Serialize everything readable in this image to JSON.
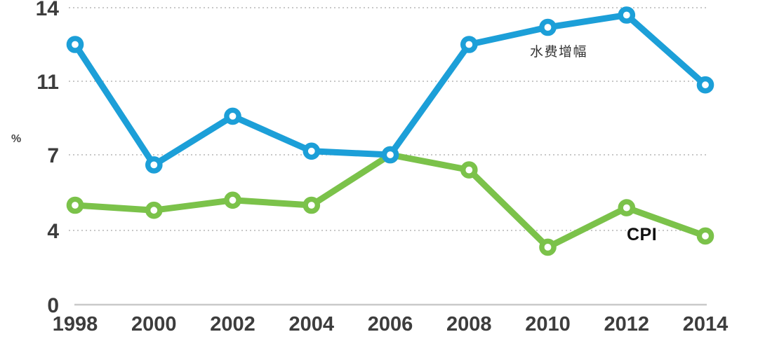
{
  "colors": {
    "series_water_fee": "#1C9FD8",
    "series_cpi": "#7BC24A",
    "gridline": "#b5b5b5",
    "axis_line": "#c9c9c9",
    "tick_text": "#3d3d3d",
    "unit_text": "#4a4a4a",
    "label_water_text": "#333333",
    "label_cpi_text": "#111111"
  },
  "chart_data": {
    "type": "line",
    "title": "",
    "xlabel": "",
    "ylabel": "%",
    "categories": [
      "1998",
      "2000",
      "2002",
      "2004",
      "2006",
      "2008",
      "2010",
      "2012",
      "2014"
    ],
    "y_ticks": [
      0,
      4,
      7,
      11,
      14
    ],
    "ylim": [
      0,
      14
    ],
    "y_axis_note": "ticks 0/4/7/11/14 are spaced evenly in pixels despite unequal value steps",
    "grid": "horizontal dotted gridline at each y tick; solid light-gray baseline at 0",
    "legend_position": "inline text labels next to lines",
    "series": [
      {
        "name": "水费增幅",
        "color": "#1C9FD8",
        "marker": "open-circle",
        "values": [
          12.5,
          6.6,
          9.1,
          7.2,
          7.0,
          12.5,
          13.2,
          13.7,
          10.8
        ]
      },
      {
        "name": "CPI",
        "color": "#7BC24A",
        "marker": "open-circle",
        "values": [
          5.0,
          4.8,
          5.2,
          5.0,
          7.0,
          6.4,
          3.1,
          4.9,
          3.7
        ]
      }
    ]
  }
}
